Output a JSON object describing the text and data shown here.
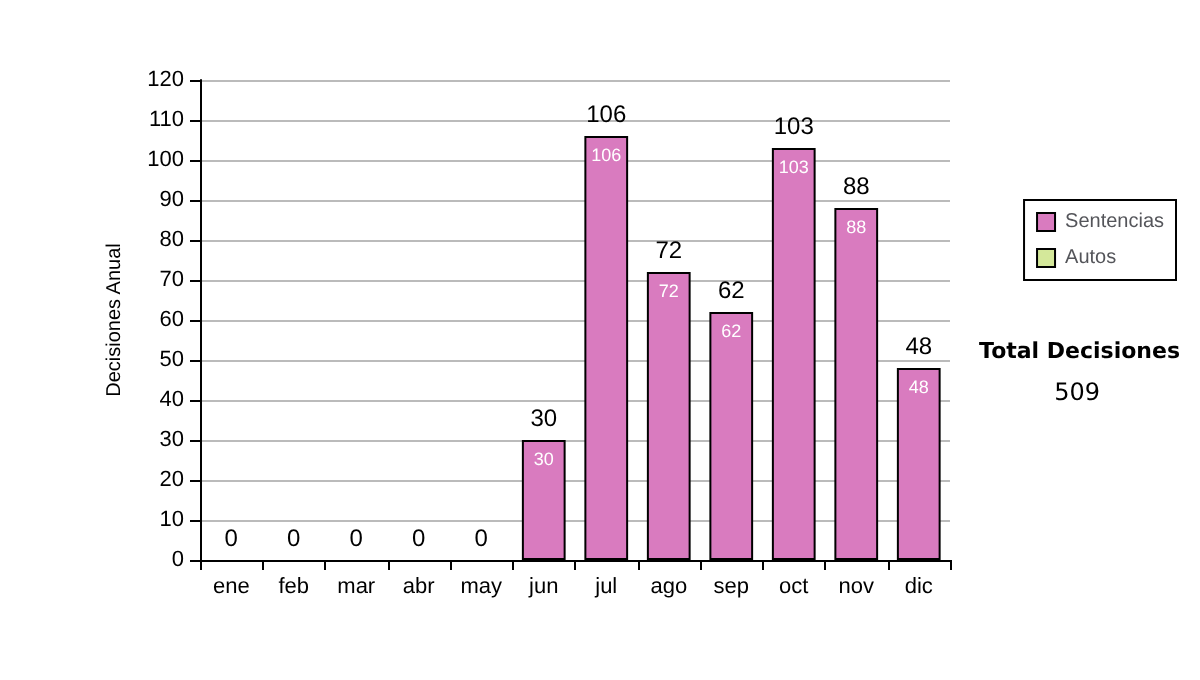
{
  "chart_data": {
    "type": "bar",
    "stacked": true,
    "ylabel": "Decisiones Anual",
    "categories": [
      "ene",
      "feb",
      "mar",
      "abr",
      "may",
      "jun",
      "jul",
      "ago",
      "sep",
      "oct",
      "nov",
      "dic"
    ],
    "series": [
      {
        "name": "Sentencias",
        "color": "#d97bbf",
        "values": [
          0,
          0,
          0,
          0,
          0,
          30,
          106,
          72,
          62,
          103,
          88,
          48
        ],
        "value_labels": [
          null,
          null,
          null,
          null,
          null,
          "30",
          "106",
          "72",
          "62",
          "103",
          "88",
          "48"
        ]
      },
      {
        "name": "Autos",
        "color": "#d4e89a",
        "values": [
          0,
          0,
          0,
          0,
          0,
          0,
          0,
          0,
          0,
          0,
          0,
          0
        ]
      }
    ],
    "totals": [
      "0",
      "0",
      "0",
      "0",
      "0",
      "30",
      "106",
      "72",
      "62",
      "103",
      "88",
      "48"
    ],
    "ylim": [
      0,
      120
    ],
    "yticks": [
      0,
      10,
      20,
      30,
      40,
      50,
      60,
      70,
      80,
      90,
      100,
      110,
      120
    ],
    "grid": "y",
    "legend": "right",
    "annotations": [
      "Total Decisiones",
      "509"
    ]
  }
}
